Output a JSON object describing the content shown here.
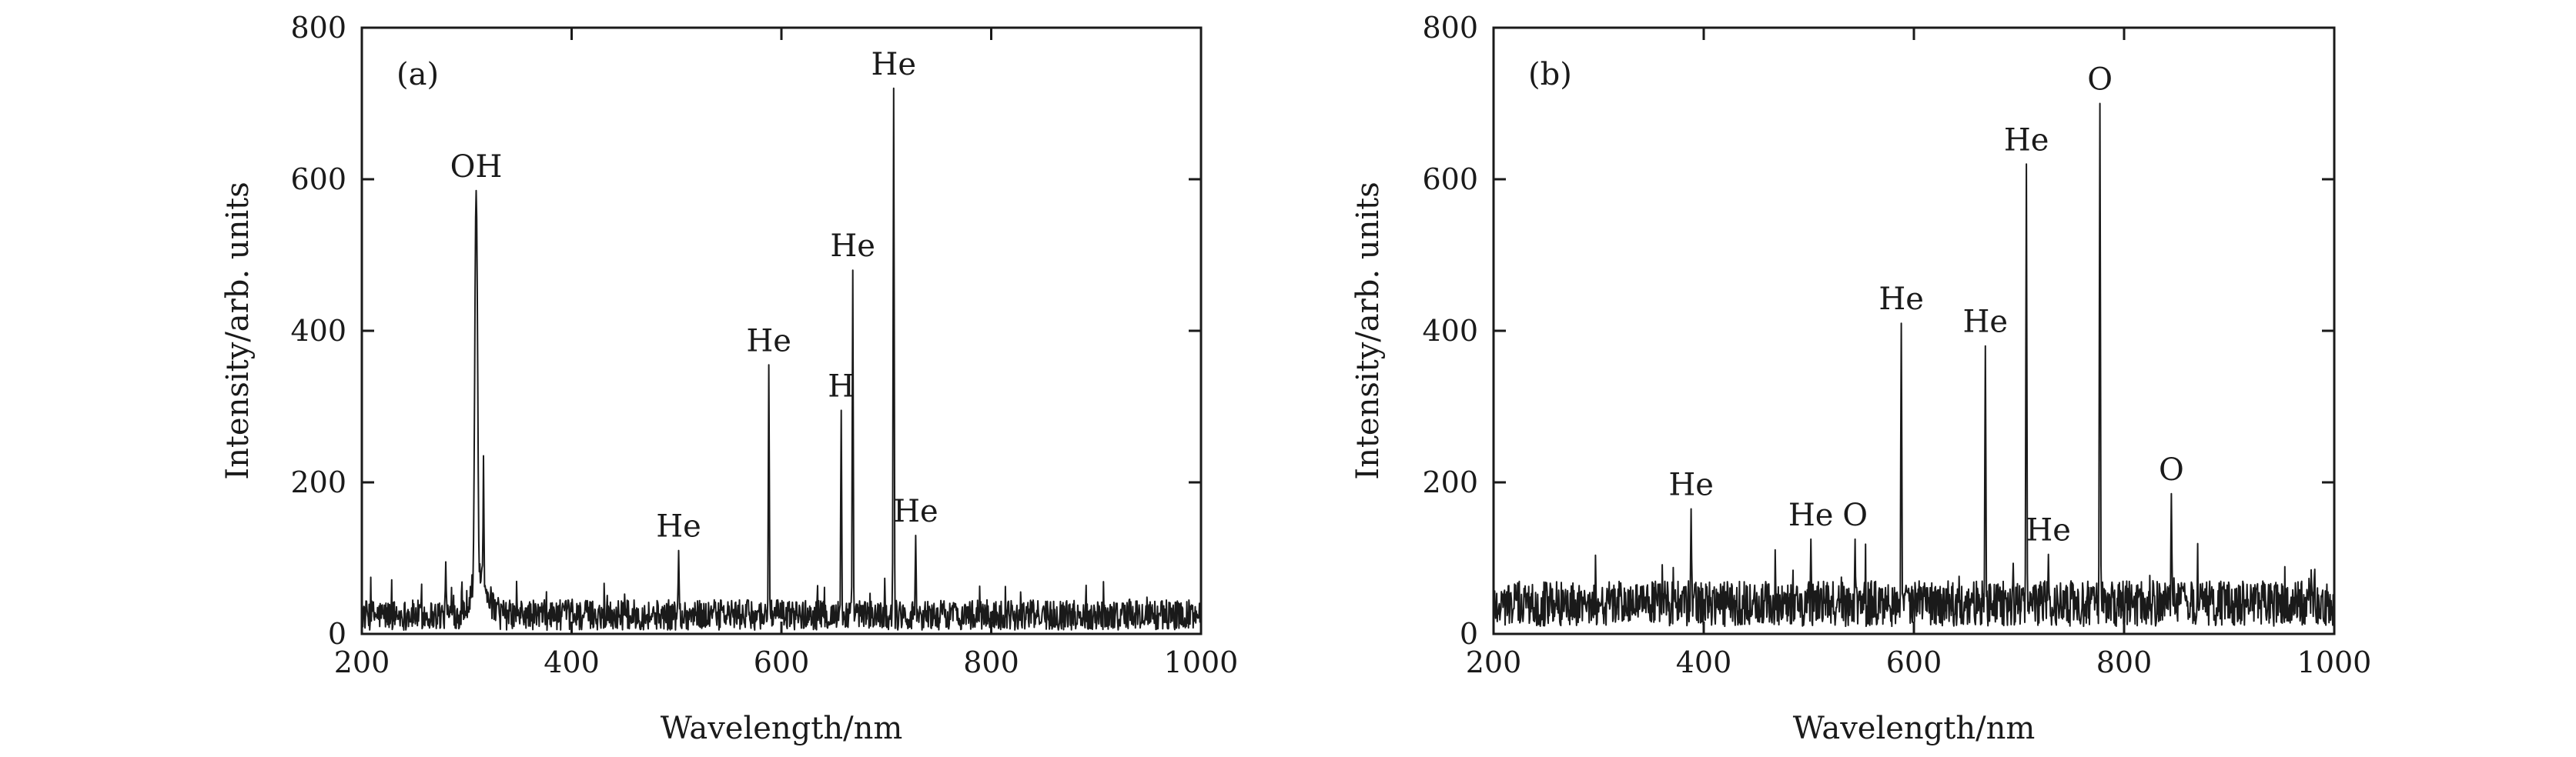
{
  "chart_data": [
    {
      "type": "line",
      "panel_label": "(a)",
      "xlabel": "Wavelength/nm",
      "ylabel": "Intensity/arb. units",
      "xlim": [
        200,
        1000
      ],
      "ylim": [
        0,
        800
      ],
      "xticks": [
        "200",
        "400",
        "600",
        "800",
        "1000"
      ],
      "yticks": [
        "0",
        "200",
        "400",
        "600",
        "800"
      ],
      "grid": false,
      "baseline_noise": [
        5,
        45
      ],
      "peaks": [
        {
          "x": 280,
          "y": 95,
          "label": ""
        },
        {
          "x": 309,
          "y": 585,
          "label": "OH"
        },
        {
          "x": 316,
          "y": 235,
          "label": ""
        },
        {
          "x": 502,
          "y": 110,
          "label": "He"
        },
        {
          "x": 588,
          "y": 355,
          "label": "He"
        },
        {
          "x": 657,
          "y": 295,
          "label": "H"
        },
        {
          "x": 668,
          "y": 480,
          "label": "He"
        },
        {
          "x": 707,
          "y": 720,
          "label": "He"
        },
        {
          "x": 728,
          "y": 130,
          "label": "He"
        }
      ]
    },
    {
      "type": "line",
      "panel_label": "(b)",
      "xlabel": "Wavelength/nm",
      "ylabel": "Intensity/arb. units",
      "xlim": [
        200,
        1000
      ],
      "ylim": [
        0,
        800
      ],
      "xticks": [
        "200",
        "400",
        "600",
        "800",
        "1000"
      ],
      "yticks": [
        "0",
        "200",
        "400",
        "600",
        "800"
      ],
      "grid": false,
      "baseline_noise": [
        10,
        70
      ],
      "peaks": [
        {
          "x": 388,
          "y": 165,
          "label": "He"
        },
        {
          "x": 502,
          "y": 125,
          "label": "He"
        },
        {
          "x": 544,
          "y": 125,
          "label": "O"
        },
        {
          "x": 588,
          "y": 410,
          "label": "He"
        },
        {
          "x": 668,
          "y": 380,
          "label": "He"
        },
        {
          "x": 707,
          "y": 620,
          "label": "He"
        },
        {
          "x": 728,
          "y": 105,
          "label": "He"
        },
        {
          "x": 777,
          "y": 700,
          "label": "O"
        },
        {
          "x": 845,
          "y": 185,
          "label": "O"
        }
      ]
    }
  ]
}
